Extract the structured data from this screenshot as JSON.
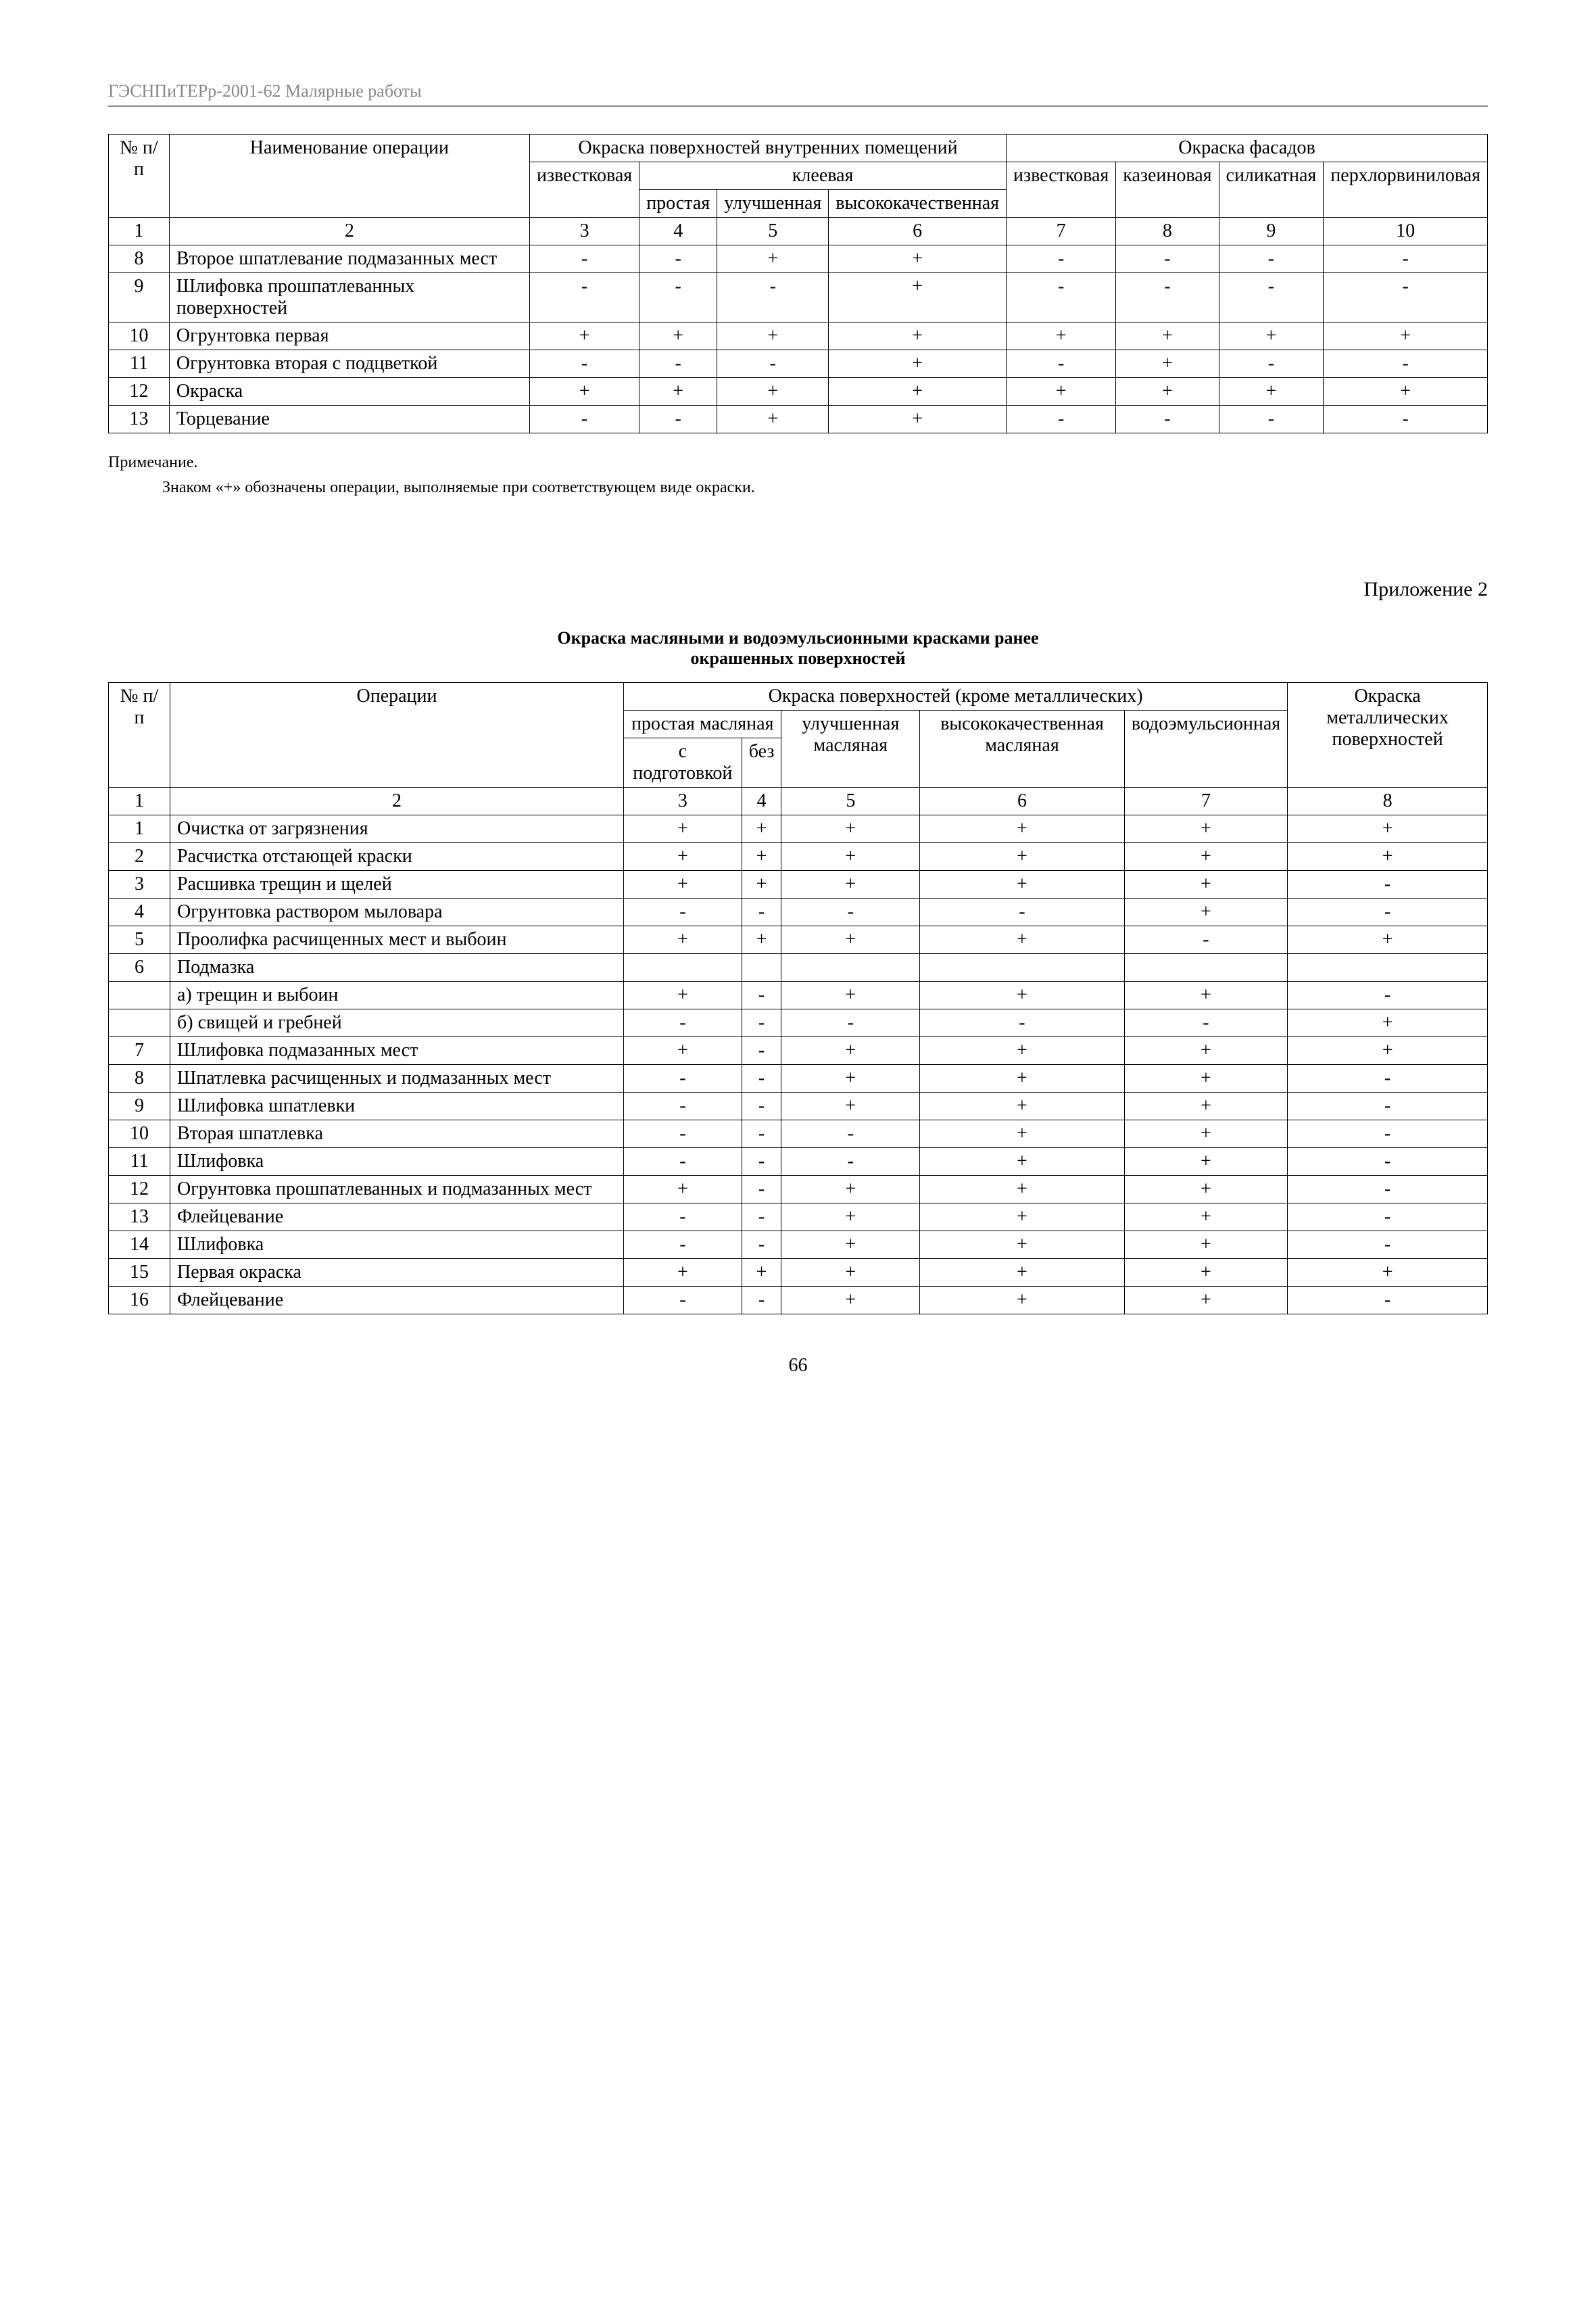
{
  "header": "ГЭСНПиТЕРр-2001-62 Малярные работы",
  "table1": {
    "head": {
      "c1": "№\nп/п",
      "c2": "Наименование операции",
      "grp1": "Окраска поверхностей внутренних помещений",
      "grp2": "Окраска фасадов",
      "c3": "известковая",
      "glue": "клеевая",
      "c4": "простая",
      "c5": "улучшенная",
      "c6": "высококачественная",
      "c7": "известковая",
      "c8": "казеиновая",
      "c9": "силикатная",
      "c10": "перхлорвиниловая",
      "nums": [
        "1",
        "2",
        "3",
        "4",
        "5",
        "6",
        "7",
        "8",
        "9",
        "10"
      ]
    },
    "rows": [
      {
        "n": "8",
        "name": "Второе шпатлевание подмазанных мест",
        "v": [
          "-",
          "-",
          "+",
          "+",
          "-",
          "-",
          "-",
          "-"
        ]
      },
      {
        "n": "9",
        "name": "Шлифовка прошпатлеванных поверхностей",
        "v": [
          "-",
          "-",
          "-",
          "+",
          "-",
          "-",
          "-",
          "-"
        ]
      },
      {
        "n": "10",
        "name": "Огрунтовка первая",
        "v": [
          "+",
          "+",
          "+",
          "+",
          "+",
          "+",
          "+",
          "+"
        ]
      },
      {
        "n": "11",
        "name": "Огрунтовка вторая с подцветкой",
        "v": [
          "-",
          "-",
          "-",
          "+",
          "-",
          "+",
          "-",
          "-"
        ]
      },
      {
        "n": "12",
        "name": "Окраска",
        "v": [
          "+",
          "+",
          "+",
          "+",
          "+",
          "+",
          "+",
          "+"
        ]
      },
      {
        "n": "13",
        "name": "Торцевание",
        "v": [
          "-",
          "-",
          "+",
          "+",
          "-",
          "-",
          "-",
          "-"
        ]
      }
    ]
  },
  "note_label": "Примечание.",
  "note_text": "Знаком «+» обозначены операции, выполняемые при соответствующем виде окраски.",
  "appendix": "Приложение 2",
  "title2_l1": "Окраска масляными и водоэмульсионными красками ранее",
  "title2_l2": "окрашенных поверхностей",
  "table2": {
    "head": {
      "c1": "№\nп/п",
      "c2": "Операции",
      "grp": "Окраска поверхностей (кроме металлических)",
      "simple": "простая масляная",
      "c3": "с подготовкой",
      "c4": "без",
      "c5": "улучшенная масляная",
      "c6": "высококачественная масляная",
      "c7": "водоэмульсионная",
      "c8": "Окраска металлических поверхностей",
      "nums": [
        "1",
        "2",
        "3",
        "4",
        "5",
        "6",
        "7",
        "8"
      ]
    },
    "rows": [
      {
        "n": "1",
        "name": "Очистка от загрязнения",
        "v": [
          "+",
          "+",
          "+",
          "+",
          "+",
          "+"
        ]
      },
      {
        "n": "2",
        "name": "Расчистка отстающей краски",
        "v": [
          "+",
          "+",
          "+",
          "+",
          "+",
          "+"
        ]
      },
      {
        "n": "3",
        "name": "Расшивка трещин и щелей",
        "v": [
          "+",
          "+",
          "+",
          "+",
          "+",
          "-"
        ]
      },
      {
        "n": "4",
        "name": "Огрунтовка раствором мыловара",
        "v": [
          "-",
          "-",
          "-",
          "-",
          "+",
          "-"
        ]
      },
      {
        "n": "5",
        "name": "Проолифка расчищенных мест и выбоин",
        "v": [
          "+",
          "+",
          "+",
          "+",
          "-",
          "+"
        ]
      },
      {
        "n": "6",
        "name": "Подмазка",
        "v": [
          "",
          "",
          "",
          "",
          "",
          ""
        ]
      },
      {
        "n": "",
        "name": "а) трещин и выбоин",
        "v": [
          "+",
          "-",
          "+",
          "+",
          "+",
          "-"
        ]
      },
      {
        "n": "",
        "name": "б) свищей и гребней",
        "v": [
          "-",
          "-",
          "-",
          "-",
          "-",
          "+"
        ]
      },
      {
        "n": "7",
        "name": "Шлифовка подмазанных мест",
        "v": [
          "+",
          "-",
          "+",
          "+",
          "+",
          "+"
        ]
      },
      {
        "n": "8",
        "name": "Шпатлевка расчищенных и подмазанных мест",
        "v": [
          "-",
          "-",
          "+",
          "+",
          "+",
          "-"
        ]
      },
      {
        "n": "9",
        "name": "Шлифовка шпатлевки",
        "v": [
          "-",
          "-",
          "+",
          "+",
          "+",
          "-"
        ]
      },
      {
        "n": "10",
        "name": "Вторая шпатлевка",
        "v": [
          "-",
          "-",
          "-",
          "+",
          "+",
          "-"
        ]
      },
      {
        "n": "11",
        "name": "Шлифовка",
        "v": [
          "-",
          "-",
          "-",
          "+",
          "+",
          "-"
        ]
      },
      {
        "n": "12",
        "name": "Огрунтовка прошпатлеванных и подмазанных мест",
        "v": [
          "+",
          "-",
          "+",
          "+",
          "+",
          "-"
        ]
      },
      {
        "n": "13",
        "name": "Флейцевание",
        "v": [
          "-",
          "-",
          "+",
          "+",
          "+",
          "-"
        ]
      },
      {
        "n": "14",
        "name": "Шлифовка",
        "v": [
          "-",
          "-",
          "+",
          "+",
          "+",
          "-"
        ]
      },
      {
        "n": "15",
        "name": "Первая окраска",
        "v": [
          "+",
          "+",
          "+",
          "+",
          "+",
          "+"
        ]
      },
      {
        "n": "16",
        "name": "Флейцевание",
        "v": [
          "-",
          "-",
          "+",
          "+",
          "+",
          "-"
        ]
      }
    ]
  },
  "page_num": "66"
}
